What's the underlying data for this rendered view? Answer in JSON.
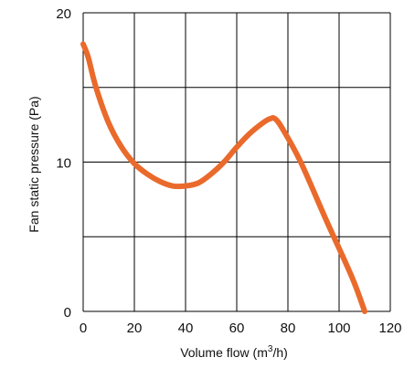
{
  "chart_data": {
    "type": "line",
    "title": "",
    "xlabel": "Volume flow (m",
    "xlabel_sup": "3",
    "xlabel_suffix": "/h)",
    "ylabel": "Fan static pressure (Pa)",
    "xlim": [
      0,
      120
    ],
    "ylim": [
      0,
      20
    ],
    "x_ticks": [
      "0",
      "20",
      "40",
      "60",
      "80",
      "100",
      "120"
    ],
    "y_ticks": [
      "0",
      "10",
      "20"
    ],
    "grid": true,
    "grid_x_step": 20,
    "grid_y_step": 5,
    "legend": "none",
    "series": [
      {
        "color": "#ea6a2c",
        "x": [
          0,
          2,
          5,
          10,
          15,
          20,
          25,
          30,
          35,
          40,
          45,
          50,
          55,
          60,
          65,
          70,
          73,
          75,
          78,
          85,
          95,
          105,
          110
        ],
        "y": [
          17.9,
          17.0,
          15.0,
          12.6,
          11.0,
          9.9,
          9.2,
          8.7,
          8.4,
          8.4,
          8.6,
          9.2,
          10.0,
          11.0,
          11.9,
          12.6,
          12.9,
          12.9,
          12.2,
          10.0,
          6.1,
          2.3,
          0
        ]
      }
    ]
  }
}
